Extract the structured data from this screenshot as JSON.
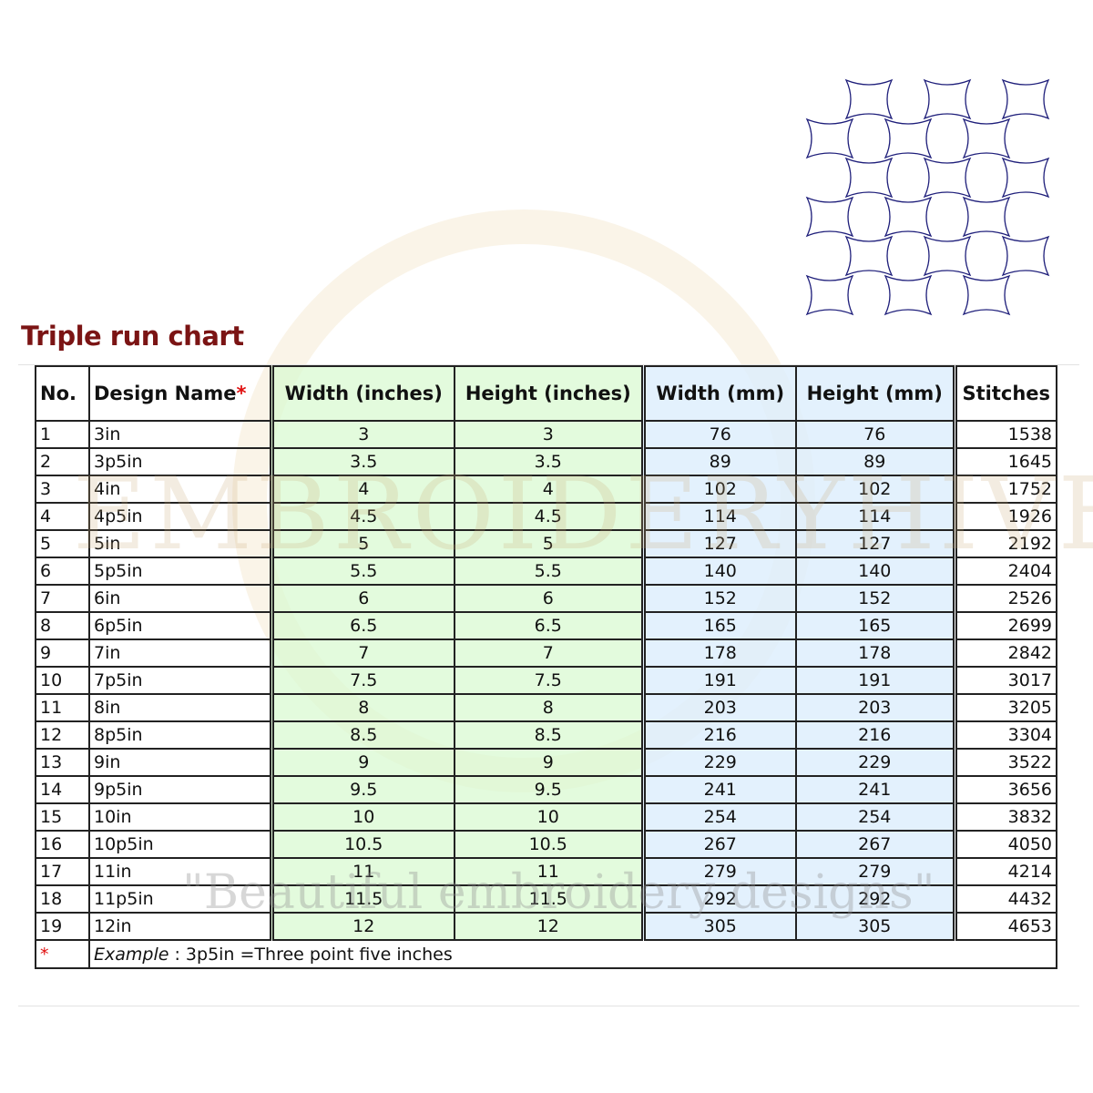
{
  "title": "Triple run chart",
  "watermark": {
    "brand": "EMBROIDERYHIVE",
    "tagline": "\"Beautiful embroidery designs\""
  },
  "colors": {
    "title": "#7b1414",
    "inches_fill": "#dafad2",
    "mm_fill": "#dceefc",
    "asterisk": "#e01010",
    "pattern_stroke": "#1e1e7a"
  },
  "table": {
    "headers": [
      "No.",
      "Design Name",
      "Width (inches)",
      "Height (inches)",
      "Width (mm)",
      "Height (mm)",
      "Stitches"
    ],
    "header_asterisk": "*",
    "rows": [
      [
        "1",
        "3in",
        "3",
        "3",
        "76",
        "76",
        "1538"
      ],
      [
        "2",
        "3p5in",
        "3.5",
        "3.5",
        "89",
        "89",
        "1645"
      ],
      [
        "3",
        "4in",
        "4",
        "4",
        "102",
        "102",
        "1752"
      ],
      [
        "4",
        "4p5in",
        "4.5",
        "4.5",
        "114",
        "114",
        "1926"
      ],
      [
        "5",
        "5in",
        "5",
        "5",
        "127",
        "127",
        "2192"
      ],
      [
        "6",
        "5p5in",
        "5.5",
        "5.5",
        "140",
        "140",
        "2404"
      ],
      [
        "7",
        "6in",
        "6",
        "6",
        "152",
        "152",
        "2526"
      ],
      [
        "8",
        "6p5in",
        "6.5",
        "6.5",
        "165",
        "165",
        "2699"
      ],
      [
        "9",
        "7in",
        "7",
        "7",
        "178",
        "178",
        "2842"
      ],
      [
        "10",
        "7p5in",
        "7.5",
        "7.5",
        "191",
        "191",
        "3017"
      ],
      [
        "11",
        "8in",
        "8",
        "8",
        "203",
        "203",
        "3205"
      ],
      [
        "12",
        "8p5in",
        "8.5",
        "8.5",
        "216",
        "216",
        "3304"
      ],
      [
        "13",
        "9in",
        "9",
        "9",
        "229",
        "229",
        "3522"
      ],
      [
        "14",
        "9p5in",
        "9.5",
        "9.5",
        "241",
        "241",
        "3656"
      ],
      [
        "15",
        "10in",
        "10",
        "10",
        "254",
        "254",
        "3832"
      ],
      [
        "16",
        "10p5in",
        "10.5",
        "10.5",
        "267",
        "267",
        "4050"
      ],
      [
        "17",
        "11in",
        "11",
        "11",
        "279",
        "279",
        "4214"
      ],
      [
        "18",
        "11p5in",
        "11.5",
        "11.5",
        "292",
        "292",
        "4432"
      ],
      [
        "19",
        "12in",
        "12",
        "12",
        "305",
        "305",
        "4653"
      ]
    ],
    "footnote": {
      "marker": "*",
      "label": "Example",
      "text": " : 3p5in =Three point five inches"
    }
  }
}
